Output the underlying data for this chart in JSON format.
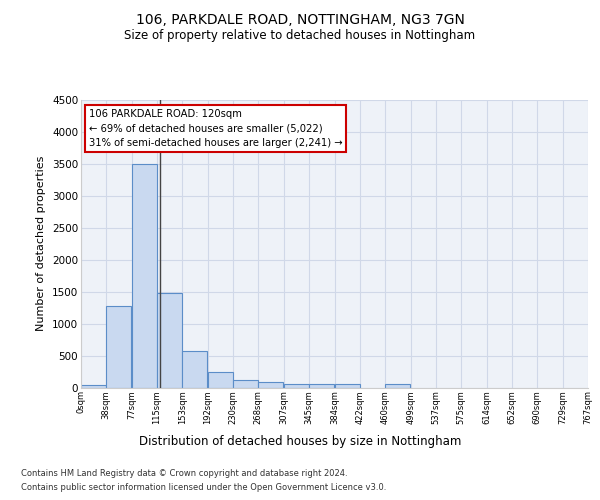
{
  "title1": "106, PARKDALE ROAD, NOTTINGHAM, NG3 7GN",
  "title2": "Size of property relative to detached houses in Nottingham",
  "xlabel": "Distribution of detached houses by size in Nottingham",
  "ylabel": "Number of detached properties",
  "bin_edges": [
    0,
    38,
    77,
    115,
    153,
    192,
    230,
    268,
    307,
    345,
    384,
    422,
    460,
    499,
    537,
    575,
    614,
    652,
    690,
    729,
    767
  ],
  "bar_heights": [
    40,
    1270,
    3500,
    1480,
    575,
    240,
    115,
    80,
    55,
    50,
    50,
    0,
    50,
    0,
    0,
    0,
    0,
    0,
    0,
    0
  ],
  "bar_color": "#c9d9f0",
  "bar_edgecolor": "#5b8dc8",
  "property_line_x": 120,
  "annotation_text": "106 PARKDALE ROAD: 120sqm\n← 69% of detached houses are smaller (5,022)\n31% of semi-detached houses are larger (2,241) →",
  "annotation_box_color": "#ffffff",
  "annotation_border_color": "#cc0000",
  "ylim": [
    0,
    4500
  ],
  "yticks": [
    0,
    500,
    1000,
    1500,
    2000,
    2500,
    3000,
    3500,
    4000,
    4500
  ],
  "grid_color": "#d0d8e8",
  "background_color": "#eef2f8",
  "footer1": "Contains HM Land Registry data © Crown copyright and database right 2024.",
  "footer2": "Contains public sector information licensed under the Open Government Licence v3.0."
}
